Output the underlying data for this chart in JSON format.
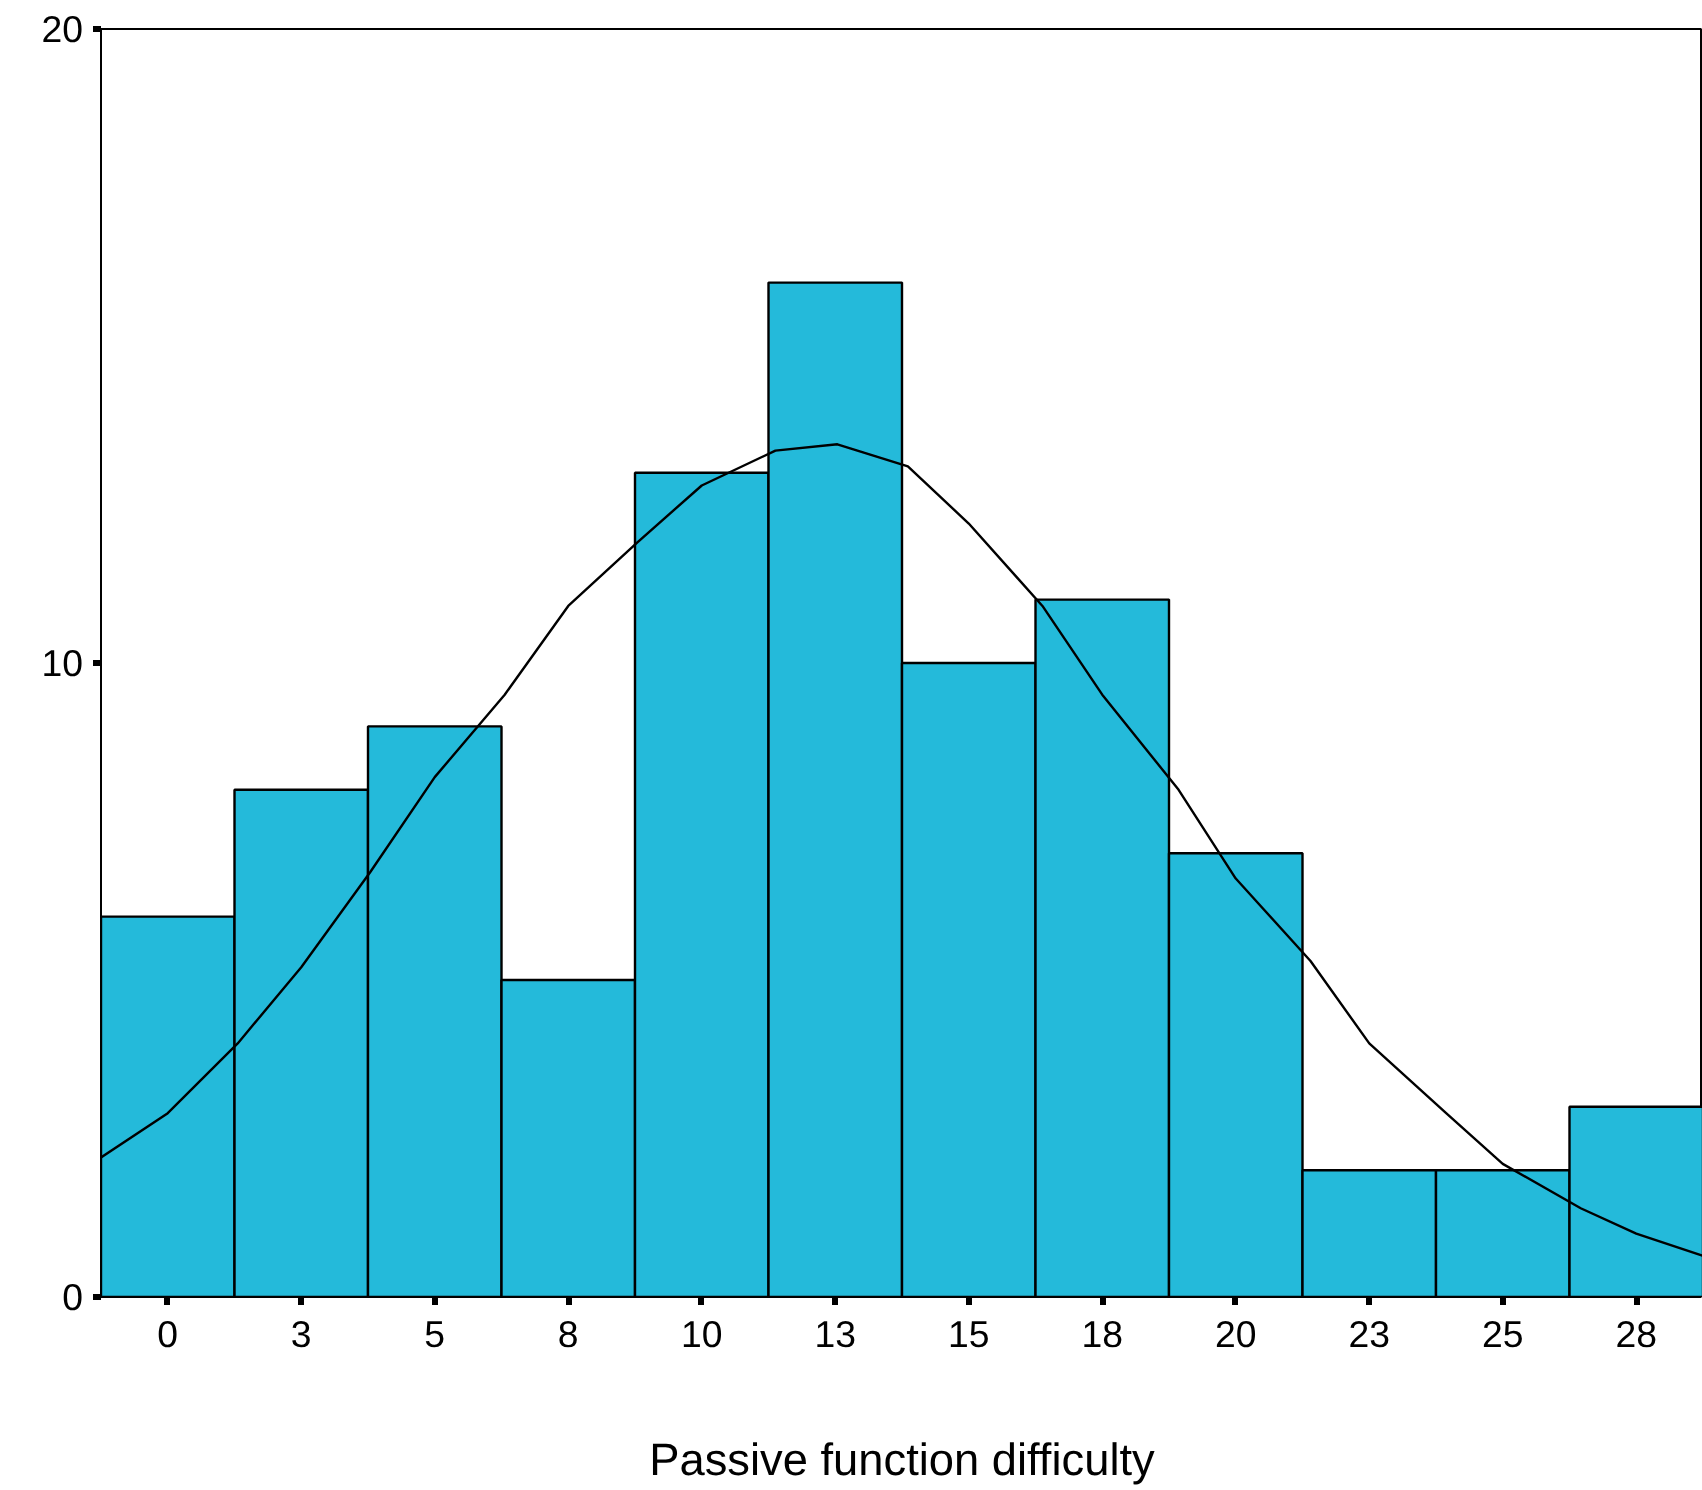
{
  "chart_data": {
    "type": "histogram",
    "xlabel": "Passive function difficulty",
    "bins": [
      -1.25,
      1.25,
      3.75,
      6.25,
      8.75,
      11.25,
      13.75,
      16.25,
      18.75,
      21.25,
      23.75,
      26.25,
      28.75
    ],
    "values": [
      6,
      8,
      9,
      5,
      13,
      16,
      10,
      11,
      7,
      2,
      2,
      3
    ],
    "color": "#24bada",
    "series": [
      {
        "type": "line",
        "color": "#000000",
        "x": [
          -1.25,
          0,
          1.31,
          2.5,
          3.79,
          5,
          6.31,
          7.5,
          8.79,
          10,
          11.38,
          12.54,
          13.86,
          15,
          16.38,
          17.5,
          18.93,
          20,
          21.4,
          22.5,
          23.94,
          25,
          26.46,
          27.5,
          28.75
        ],
        "values": [
          2.2,
          2.9,
          4.0,
          5.2,
          6.7,
          8.2,
          9.5,
          10.9,
          11.9,
          12.8,
          13.35,
          13.45,
          13.1,
          12.2,
          10.9,
          9.5,
          8.0,
          6.6,
          5.3,
          4.0,
          2.9,
          2.1,
          1.4,
          1.0,
          0.65
        ]
      }
    ],
    "xlim": [
      -1.25,
      28.75
    ],
    "ylim": [
      0,
      20
    ],
    "xticks": [
      0,
      {
        "value": 2.5,
        "label": "3"
      },
      5,
      {
        "value": 7.5,
        "label": "8"
      },
      10,
      {
        "value": 12.5,
        "label": "13"
      },
      15,
      {
        "value": 17.5,
        "label": "18"
      },
      20,
      {
        "value": 22.5,
        "label": "23"
      },
      25,
      {
        "value": 27.5,
        "label": "28"
      }
    ],
    "yticks": [
      0,
      10,
      20
    ],
    "grid": false
  }
}
